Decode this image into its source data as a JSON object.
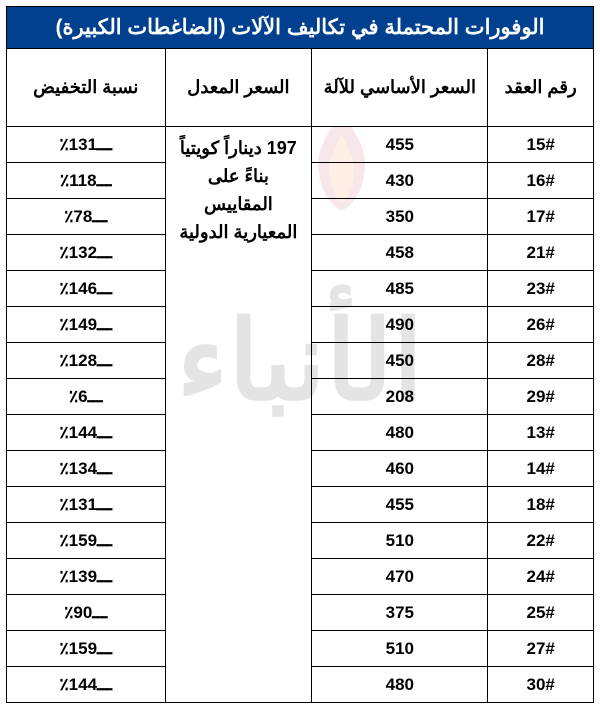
{
  "title": "الوفورات المحتملة في تكاليف الآلات (الضاغطات الكبيرة)",
  "headers": {
    "contract": "رقم العقد",
    "basePrice": "السعر الأساسي للآلة",
    "adjustedPrice": "السعر المعدل",
    "reduction": "نسبة التخفيض"
  },
  "adjustedPriceNote": "197 ديناراً كويتياً بناءً على المقاييس المعيارية الدولية",
  "rows": [
    {
      "contract": "15#",
      "base": "455",
      "reduct": "ـــ131٪"
    },
    {
      "contract": "16#",
      "base": "430",
      "reduct": "ـــ118٪"
    },
    {
      "contract": "17#",
      "base": "350",
      "reduct": "ـــ78٪"
    },
    {
      "contract": "21#",
      "base": "458",
      "reduct": "ـــ132٪"
    },
    {
      "contract": "23#",
      "base": "485",
      "reduct": "ـــ146٪"
    },
    {
      "contract": "26#",
      "base": "490",
      "reduct": "ـــ149٪"
    },
    {
      "contract": "28#",
      "base": "450",
      "reduct": "ـــ128٪"
    },
    {
      "contract": "29#",
      "base": "208",
      "reduct": "ـــ6٪"
    },
    {
      "contract": "13#",
      "base": "480",
      "reduct": "ـــ144٪"
    },
    {
      "contract": "14#",
      "base": "460",
      "reduct": "ـــ134٪"
    },
    {
      "contract": "18#",
      "base": "455",
      "reduct": "ـــ131٪"
    },
    {
      "contract": "22#",
      "base": "510",
      "reduct": "ـــ159٪"
    },
    {
      "contract": "24#",
      "base": "470",
      "reduct": "ـــ139٪"
    },
    {
      "contract": "25#",
      "base": "375",
      "reduct": "ـــ90٪"
    },
    {
      "contract": "27#",
      "base": "510",
      "reduct": "ـــ159٪"
    },
    {
      "contract": "30#",
      "base": "480",
      "reduct": "ـــ144٪"
    }
  ],
  "watermark": {
    "text": "الأنباء"
  },
  "style": {
    "titleBg": "#00408f",
    "titleColor": "#ffffff",
    "borderColor": "#000000",
    "textColor": "#000000",
    "bgColor": "#ffffff",
    "flameColors": {
      "outer": "#c41e3a",
      "inner": "#ff6b00"
    }
  },
  "layout": {
    "widthPx": 600,
    "heightPx": 722,
    "columnWidthsPct": [
      18,
      30,
      25,
      27
    ],
    "titleFontSize": 21,
    "headerFontSize": 18,
    "dataFontSize": 17,
    "rowHeightPx": 36,
    "headerHeightPx": 78
  }
}
